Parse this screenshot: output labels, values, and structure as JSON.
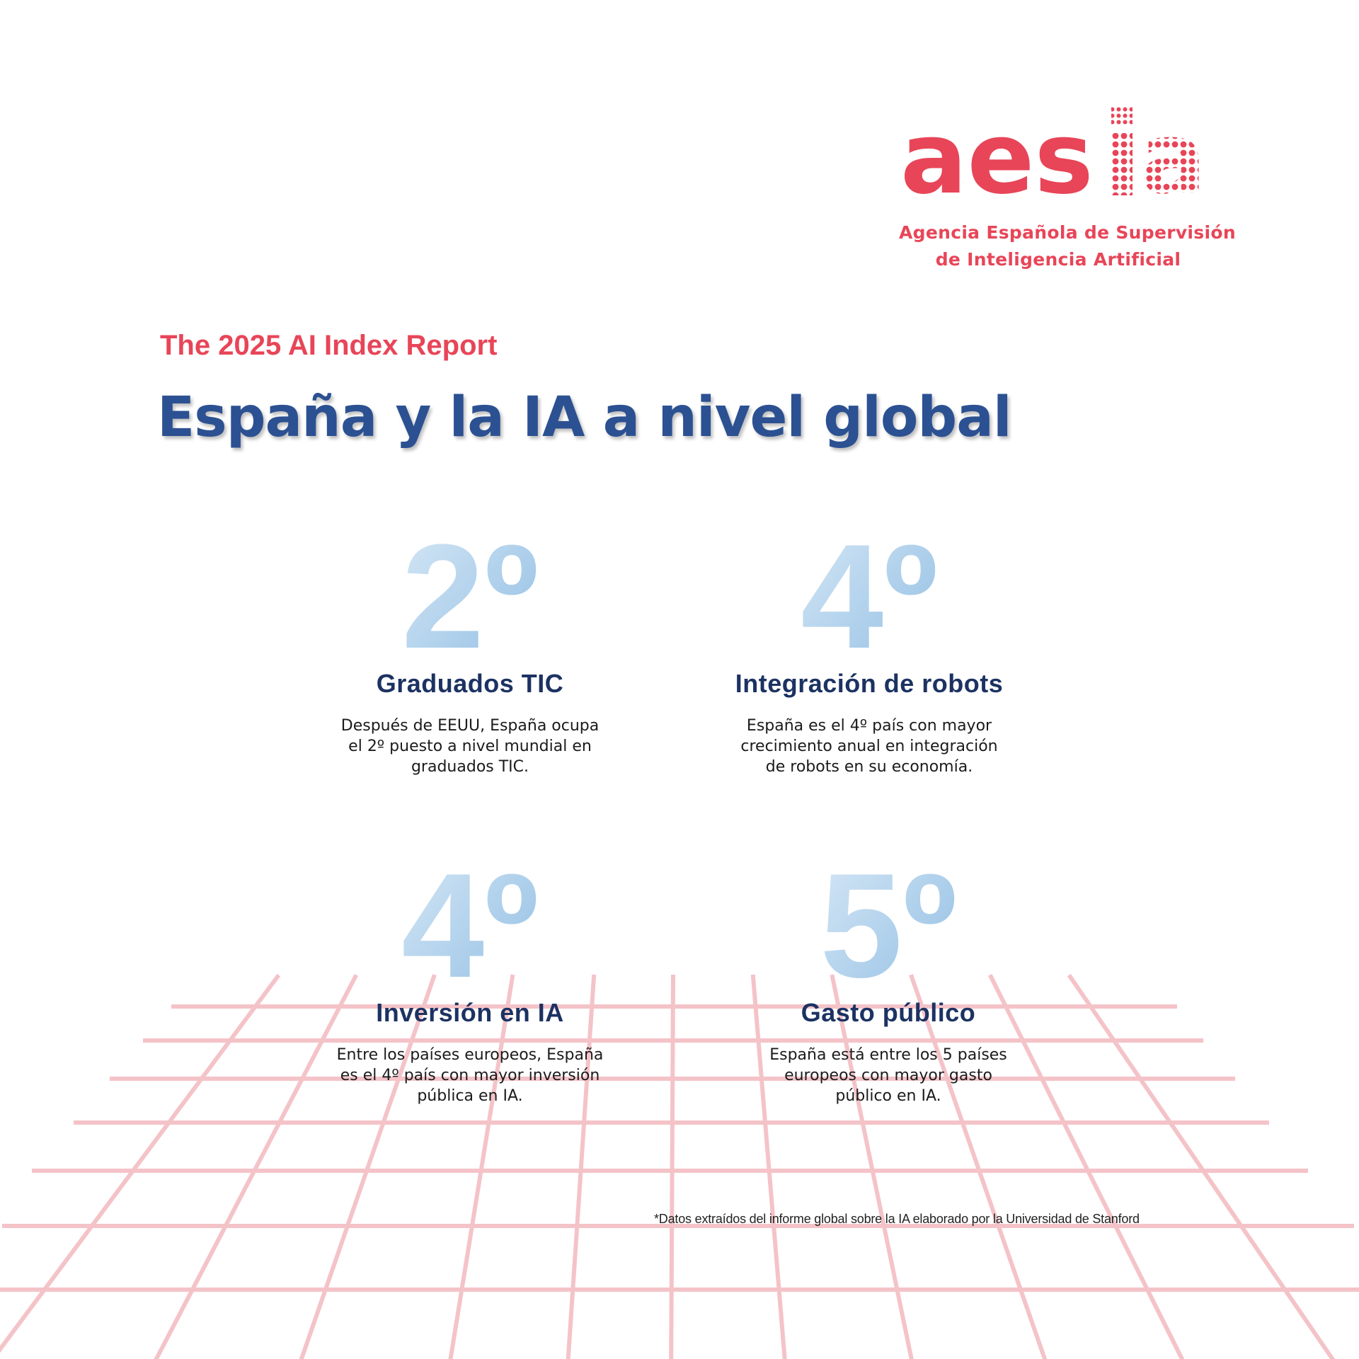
{
  "colors": {
    "accent_red": "#e84558",
    "title_blue": "#2c5192",
    "label_navy": "#1c3262",
    "rank_light_blue": "#b9d6ee",
    "rank_mid_blue": "#8fbde3",
    "grid_pink": "#f4c3c8"
  },
  "logo": {
    "wordmark": "aesia",
    "line1": "Agencia Española de Supervisión",
    "line2": "de Inteligencia Artificial"
  },
  "header": {
    "kicker": "The 2025 AI Index Report",
    "title": "España y la IA a nivel global"
  },
  "stats": [
    {
      "rank": "2º",
      "label": "Graduados TIC",
      "description": "Después de EEUU, España ocupa el 2º puesto a nivel mundial en graduados TIC."
    },
    {
      "rank": "4º",
      "label": "Integración de robots",
      "description": "España es el 4º país con mayor crecimiento anual en integración de robots en su economía."
    },
    {
      "rank": "4º",
      "label": "Inversión en IA",
      "description": "Entre los países europeos, España es el 4º país con mayor inversión pública en IA."
    },
    {
      "rank": "5º",
      "label": "Gasto público",
      "description": "España está entre los 5 países europeos con mayor gasto público en IA."
    }
  ],
  "footnote": "*Datos extraídos del informe global sobre la IA elaborado por la Universidad de Stanford"
}
